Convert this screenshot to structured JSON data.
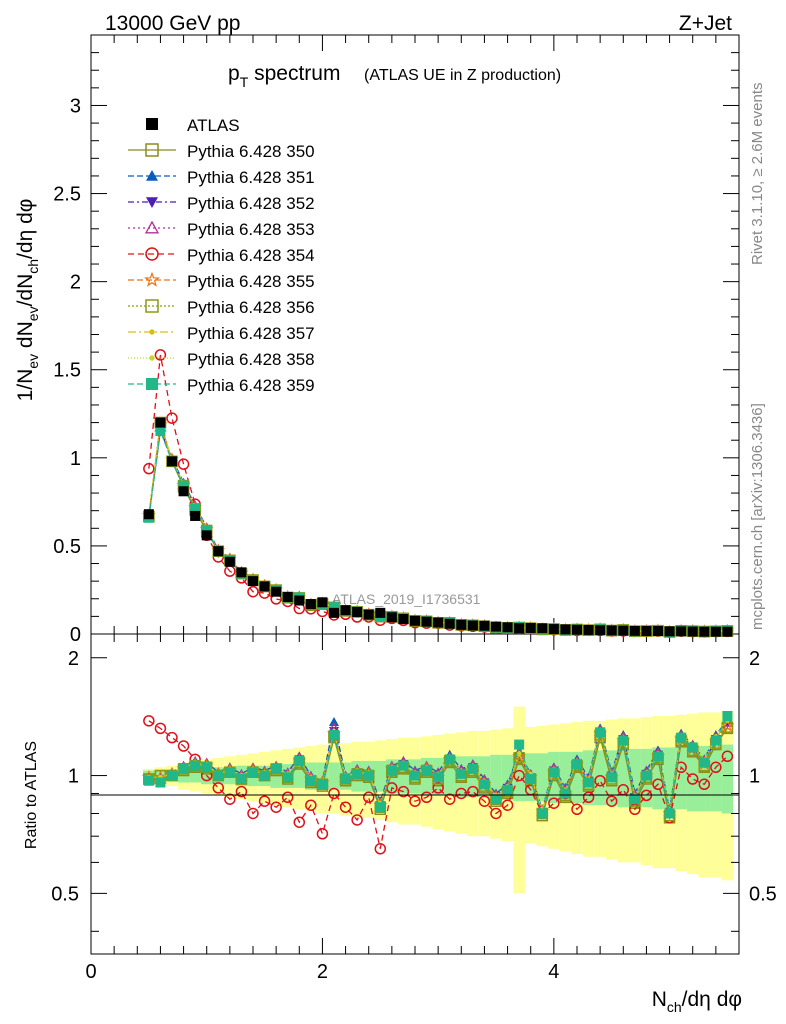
{
  "header": {
    "left": "13000 GeV pp",
    "right": "Z+Jet"
  },
  "side": {
    "rivet": "Rivet 3.1.10, ≥ 2.6M events",
    "mcplots": "mcplots.cern.ch [arXiv:1306.3436]"
  },
  "chart_data": {
    "type": "scatter",
    "title_main": "p",
    "title_sub": "T",
    "title_rest": " spectrum",
    "title_paren": "(ATLAS UE in Z production)",
    "watermark": "ATLAS_2019_I1736531",
    "xlabel": "N",
    "xlabel_sub": "ch",
    "xlabel_rest": "/dη dφ",
    "ylabel": "1/N",
    "ylabel_sub1": "ev",
    "ylabel_mid": " dN",
    "ylabel_sub2": "ev",
    "ylabel_mid2": "/dN",
    "ylabel_sub3": "ch",
    "ylabel_rest": "/dη dφ",
    "ratio_ylabel": "Ratio to ATLAS",
    "xlim": [
      0,
      5.6
    ],
    "ylim": [
      0,
      3.4
    ],
    "ratio_ylim": [
      0.35,
      2.3
    ],
    "x_ticks": [
      "0",
      "2",
      "4"
    ],
    "y_ticks": [
      "0",
      "0.5",
      "1",
      "1.5",
      "2",
      "2.5",
      "3"
    ],
    "ratio_ticks": [
      "0.5",
      "1",
      "2"
    ],
    "legend_position": "top-left",
    "x": [
      0.5,
      0.6,
      0.7,
      0.8,
      0.9,
      1.0,
      1.1,
      1.2,
      1.3,
      1.4,
      1.5,
      1.6,
      1.7,
      1.8,
      1.9,
      2.0,
      2.1,
      2.2,
      2.3,
      2.4,
      2.5,
      2.6,
      2.7,
      2.8,
      2.9,
      3.0,
      3.1,
      3.2,
      3.3,
      3.4,
      3.5,
      3.6,
      3.7,
      3.8,
      3.9,
      4.0,
      4.1,
      4.2,
      4.3,
      4.4,
      4.5,
      4.6,
      4.7,
      4.8,
      4.9,
      5.0,
      5.1,
      5.2,
      5.3,
      5.4,
      5.5
    ],
    "data": {
      "name": "ATLAS",
      "values": [
        0.68,
        1.2,
        0.98,
        0.81,
        0.67,
        0.56,
        0.47,
        0.41,
        0.35,
        0.3,
        0.27,
        0.24,
        0.21,
        0.19,
        0.17,
        0.18,
        0.12,
        0.135,
        0.125,
        0.11,
        0.12,
        0.095,
        0.085,
        0.075,
        0.07,
        0.065,
        0.058,
        0.052,
        0.048,
        0.047,
        0.042,
        0.038,
        0.033,
        0.034,
        0.033,
        0.028,
        0.026,
        0.024,
        0.023,
        0.021,
        0.02,
        0.019,
        0.018,
        0.017,
        0.017,
        0.015,
        0.015,
        0.014,
        0.013,
        0.013,
        0.013
      ]
    },
    "ratio_band_inner": [
      0.03,
      0.03,
      0.03,
      0.04,
      0.04,
      0.05,
      0.05,
      0.05,
      0.06,
      0.06,
      0.06,
      0.07,
      0.07,
      0.07,
      0.08,
      0.08,
      0.08,
      0.08,
      0.09,
      0.09,
      0.09,
      0.1,
      0.1,
      0.1,
      0.11,
      0.11,
      0.11,
      0.12,
      0.12,
      0.12,
      0.13,
      0.13,
      0.14,
      0.14,
      0.14,
      0.15,
      0.15,
      0.15,
      0.16,
      0.16,
      0.16,
      0.17,
      0.17,
      0.17,
      0.18,
      0.18,
      0.18,
      0.19,
      0.19,
      0.19,
      0.2
    ],
    "ratio_band_outer": [
      0.04,
      0.05,
      0.06,
      0.08,
      0.09,
      0.1,
      0.11,
      0.12,
      0.13,
      0.14,
      0.15,
      0.16,
      0.17,
      0.18,
      0.19,
      0.2,
      0.2,
      0.21,
      0.22,
      0.22,
      0.23,
      0.24,
      0.25,
      0.25,
      0.26,
      0.27,
      0.28,
      0.29,
      0.3,
      0.3,
      0.31,
      0.32,
      0.5,
      0.33,
      0.34,
      0.35,
      0.36,
      0.37,
      0.38,
      0.38,
      0.39,
      0.4,
      0.4,
      0.41,
      0.42,
      0.42,
      0.43,
      0.44,
      0.45,
      0.45,
      0.46
    ],
    "series": [
      {
        "name": "Pythia 6.428 350",
        "color": "#8b8b1f",
        "marker": "square-open",
        "dash": "",
        "ratio": [
          0.98,
          1.0,
          1.0,
          1.03,
          1.05,
          1.04,
          1.0,
          1.02,
          0.98,
          1.02,
          1.0,
          1.03,
          0.98,
          1.07,
          0.96,
          0.94,
          1.25,
          0.97,
          1.0,
          0.99,
          0.82,
          1.02,
          1.04,
          0.98,
          1.02,
          0.97,
          1.08,
          0.99,
          1.02,
          0.93,
          0.86,
          0.9,
          1.1,
          0.97,
          0.79,
          1.0,
          0.88,
          1.05,
          0.94,
          1.25,
          0.97,
          1.2,
          0.85,
          0.98,
          1.1,
          0.78,
          1.22,
          1.15,
          1.05,
          1.2,
          1.32
        ]
      },
      {
        "name": "Pythia 6.428 351",
        "color": "#0b5cbf",
        "marker": "triangle-up",
        "dash": "6,3",
        "ratio": [
          0.99,
          0.96,
          1.02,
          1.06,
          1.09,
          1.08,
          1.02,
          1.05,
          1.01,
          1.05,
          1.03,
          1.06,
          1.02,
          1.12,
          1.0,
          0.97,
          1.37,
          1.0,
          1.04,
          1.03,
          0.86,
          1.06,
          1.09,
          1.03,
          1.06,
          1.02,
          1.13,
          1.04,
          1.07,
          0.98,
          0.9,
          0.95,
          1.15,
          1.01,
          0.82,
          1.05,
          0.93,
          1.1,
          0.99,
          1.32,
          1.02,
          1.27,
          0.9,
          1.03,
          1.16,
          0.82,
          1.28,
          1.2,
          1.1,
          1.27,
          1.39
        ]
      },
      {
        "name": "Pythia 6.428 352",
        "color": "#4b1fb5",
        "marker": "triangle-down",
        "dash": "6,3,2,3",
        "ratio": [
          0.98,
          0.97,
          1.0,
          1.05,
          1.07,
          1.06,
          1.0,
          1.03,
          0.99,
          1.03,
          1.01,
          1.04,
          1.0,
          1.1,
          0.98,
          0.95,
          1.3,
          0.98,
          1.02,
          1.01,
          0.84,
          1.04,
          1.07,
          1.01,
          1.04,
          1.0,
          1.1,
          1.02,
          1.05,
          0.96,
          0.88,
          0.93,
          1.12,
          0.99,
          0.8,
          1.03,
          0.91,
          1.07,
          0.97,
          1.29,
          1.0,
          1.24,
          0.88,
          1.01,
          1.13,
          0.8,
          1.25,
          1.18,
          1.08,
          1.24,
          1.36
        ]
      },
      {
        "name": "Pythia 6.428 353",
        "color": "#b0309a",
        "marker": "triangle-up-open",
        "dash": "2,3",
        "ratio": [
          0.99,
          0.98,
          1.01,
          1.05,
          1.08,
          1.07,
          1.01,
          1.04,
          1.0,
          1.04,
          1.02,
          1.05,
          1.01,
          1.11,
          0.99,
          0.96,
          1.32,
          0.99,
          1.03,
          1.02,
          0.85,
          1.05,
          1.08,
          1.02,
          1.05,
          1.01,
          1.11,
          1.03,
          1.06,
          0.97,
          0.89,
          0.94,
          1.13,
          1.0,
          0.81,
          1.04,
          0.92,
          1.08,
          0.98,
          1.3,
          1.01,
          1.25,
          0.89,
          1.02,
          1.14,
          0.81,
          1.26,
          1.19,
          1.09,
          1.25,
          1.37
        ]
      },
      {
        "name": "Pythia 6.428 354",
        "color": "#e0101a",
        "marker": "circle-open",
        "dash": "6,4",
        "ratio": [
          1.38,
          1.32,
          1.25,
          1.19,
          1.1,
          1.0,
          0.93,
          0.87,
          0.91,
          0.8,
          0.86,
          0.83,
          0.88,
          0.76,
          0.84,
          0.71,
          0.9,
          0.83,
          0.77,
          0.88,
          0.65,
          0.93,
          0.91,
          0.86,
          0.88,
          0.93,
          0.87,
          0.9,
          0.91,
          0.86,
          0.8,
          0.84,
          1.0,
          0.92,
          0.8,
          0.85,
          0.9,
          0.82,
          0.88,
          0.97,
          0.86,
          0.92,
          0.82,
          0.89,
          0.95,
          0.78,
          1.05,
          0.98,
          0.95,
          1.05,
          1.12
        ]
      },
      {
        "name": "Pythia 6.428 355",
        "color": "#f07010",
        "marker": "star-open",
        "dash": "6,3",
        "ratio": [
          0.99,
          0.99,
          1.01,
          1.04,
          1.07,
          1.06,
          1.01,
          1.03,
          0.99,
          1.03,
          1.01,
          1.04,
          1.0,
          1.09,
          0.98,
          0.96,
          1.28,
          0.98,
          1.02,
          1.01,
          0.84,
          1.04,
          1.06,
          1.0,
          1.04,
          0.99,
          1.1,
          1.01,
          1.04,
          0.95,
          0.88,
          0.92,
          1.12,
          0.99,
          0.81,
          1.02,
          0.9,
          1.07,
          0.96,
          1.28,
          0.99,
          1.23,
          0.87,
          1.0,
          1.12,
          0.8,
          1.24,
          1.17,
          1.07,
          1.22,
          1.34
        ]
      },
      {
        "name": "Pythia 6.428 356",
        "color": "#8a9a10",
        "marker": "square-open",
        "dash": "2,2",
        "ratio": [
          0.98,
          1.0,
          1.0,
          1.04,
          1.06,
          1.05,
          1.0,
          1.02,
          0.98,
          1.02,
          1.0,
          1.04,
          0.99,
          1.08,
          0.97,
          0.95,
          1.26,
          0.98,
          1.01,
          1.0,
          0.83,
          1.03,
          1.05,
          0.99,
          1.03,
          0.98,
          1.09,
          1.0,
          1.03,
          0.94,
          0.87,
          0.91,
          1.11,
          0.98,
          0.8,
          1.01,
          0.89,
          1.06,
          0.95,
          1.27,
          0.98,
          1.21,
          0.86,
          0.99,
          1.11,
          0.79,
          1.23,
          1.16,
          1.06,
          1.21,
          1.33
        ]
      },
      {
        "name": "Pythia 6.428 357",
        "color": "#d8c010",
        "marker": "dot",
        "dash": "8,3,2,3",
        "ratio": [
          0.99,
          0.99,
          1.01,
          1.05,
          1.07,
          1.06,
          1.01,
          1.03,
          1.0,
          1.03,
          1.01,
          1.05,
          1.0,
          1.1,
          0.98,
          0.96,
          1.29,
          0.99,
          1.02,
          1.01,
          0.84,
          1.04,
          1.07,
          1.01,
          1.04,
          1.0,
          1.11,
          1.02,
          1.05,
          0.96,
          0.88,
          0.93,
          1.13,
          1.0,
          0.81,
          1.03,
          0.91,
          1.08,
          0.97,
          1.3,
          1.0,
          1.24,
          0.88,
          1.01,
          1.13,
          0.81,
          1.26,
          1.19,
          1.09,
          1.24,
          1.38
        ]
      },
      {
        "name": "Pythia 6.428 358",
        "color": "#c8d828",
        "marker": "dot",
        "dash": "1,2",
        "ratio": [
          0.99,
          0.99,
          1.01,
          1.05,
          1.08,
          1.07,
          1.01,
          1.04,
          1.0,
          1.04,
          1.02,
          1.05,
          1.01,
          1.1,
          0.99,
          0.96,
          1.3,
          0.99,
          1.03,
          1.02,
          0.85,
          1.05,
          1.08,
          1.02,
          1.05,
          1.01,
          1.11,
          1.03,
          1.06,
          0.97,
          0.89,
          0.94,
          1.14,
          1.01,
          0.82,
          1.04,
          0.92,
          1.09,
          0.98,
          1.31,
          1.01,
          1.25,
          0.89,
          1.02,
          1.14,
          0.82,
          1.27,
          1.2,
          1.1,
          1.26,
          1.4
        ]
      },
      {
        "name": "Pythia 6.428 359",
        "color": "#20b888",
        "marker": "square",
        "dash": "6,3",
        "ratio": [
          0.97,
          0.96,
          1.0,
          1.04,
          1.06,
          1.05,
          1.0,
          1.02,
          0.98,
          1.02,
          1.0,
          1.04,
          0.99,
          1.09,
          0.97,
          0.95,
          1.27,
          0.98,
          1.01,
          1.0,
          0.83,
          1.03,
          1.06,
          1.0,
          1.03,
          0.99,
          1.1,
          1.01,
          1.04,
          0.95,
          0.87,
          0.92,
          1.2,
          0.98,
          0.8,
          1.02,
          0.9,
          1.07,
          0.96,
          1.29,
          0.99,
          1.23,
          0.87,
          1.0,
          1.12,
          0.8,
          1.25,
          1.18,
          1.08,
          1.23,
          1.42
        ]
      }
    ]
  }
}
